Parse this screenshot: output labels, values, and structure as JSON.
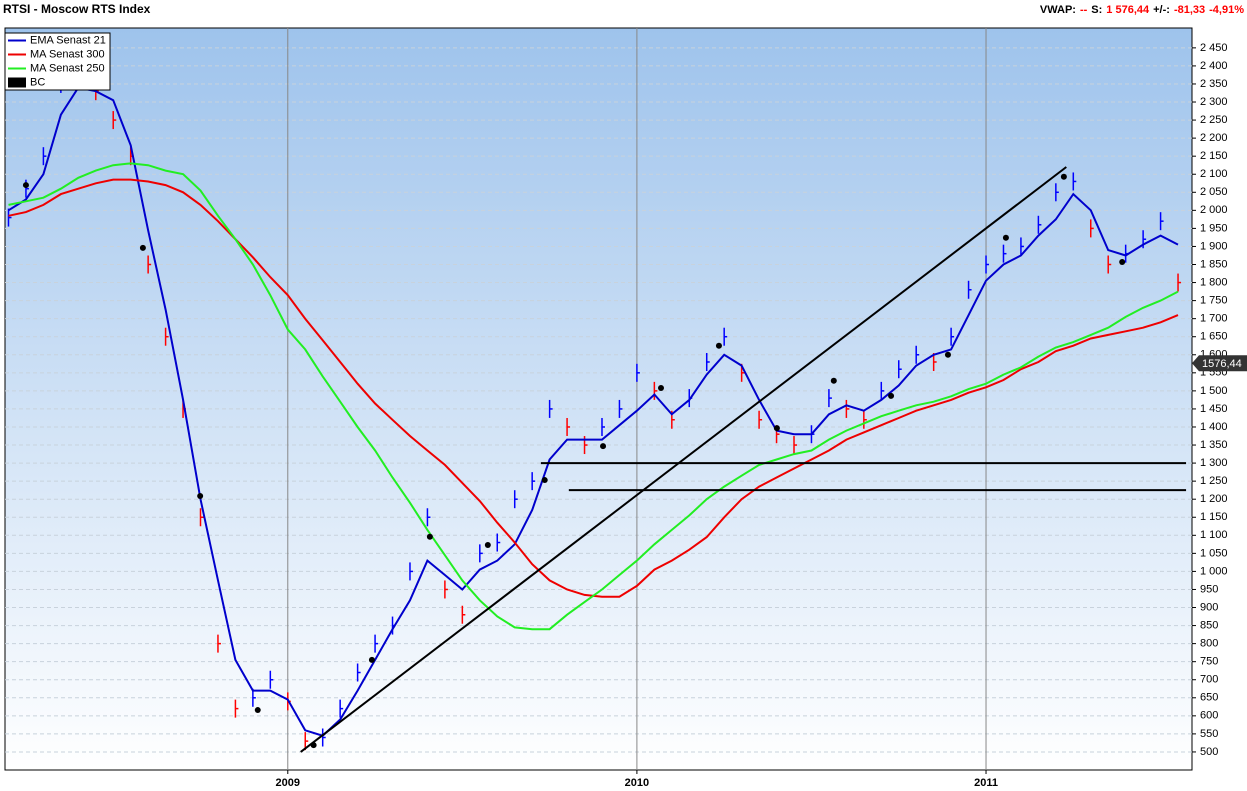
{
  "chart_data": {
    "type": "line",
    "title": "RTSI - Moscow RTS Index",
    "header_right": [
      {
        "text": "VWAP:",
        "color": "#000000"
      },
      {
        "text": "--",
        "color": "#ff0000"
      },
      {
        "text": "S:",
        "color": "#000000"
      },
      {
        "text": "1 576,44",
        "color": "#ff0000"
      },
      {
        "text": "+/-:",
        "color": "#000000"
      },
      {
        "text": "-81,33",
        "color": "#ff0000"
      },
      {
        "text": "-4,91%",
        "color": "#ff0000"
      }
    ],
    "x": [
      2008.2,
      2008.25,
      2008.3,
      2008.35,
      2008.4,
      2008.45,
      2008.5,
      2008.55,
      2008.6,
      2008.65,
      2008.7,
      2008.75,
      2008.8,
      2008.85,
      2008.9,
      2008.95,
      2009.0,
      2009.05,
      2009.1,
      2009.15,
      2009.2,
      2009.25,
      2009.3,
      2009.35,
      2009.4,
      2009.45,
      2009.5,
      2009.55,
      2009.6,
      2009.65,
      2009.7,
      2009.75,
      2009.8,
      2009.85,
      2009.9,
      2009.95,
      2010.0,
      2010.05,
      2010.1,
      2010.15,
      2010.2,
      2010.25,
      2010.3,
      2010.35,
      2010.4,
      2010.45,
      2010.5,
      2010.55,
      2010.6,
      2010.65,
      2010.7,
      2010.75,
      2010.8,
      2010.85,
      2010.9,
      2010.95,
      2011.0,
      2011.05,
      2011.1,
      2011.15,
      2011.2,
      2011.25,
      2011.3,
      2011.35,
      2011.4,
      2011.45,
      2011.5,
      2011.55
    ],
    "series": [
      {
        "name": "EMA  Senast 21",
        "color": "#0000cc",
        "style": "line",
        "values": [
          2000,
          2030,
          2100,
          2265,
          2340,
          2330,
          2305,
          2180,
          1945,
          1725,
          1475,
          1200,
          975,
          755,
          670,
          670,
          645,
          560,
          545,
          590,
          670,
          755,
          840,
          920,
          1030,
          990,
          950,
          1005,
          1030,
          1075,
          1170,
          1310,
          1365,
          1365,
          1365,
          1405,
          1445,
          1490,
          1435,
          1475,
          1545,
          1600,
          1570,
          1475,
          1390,
          1380,
          1380,
          1435,
          1460,
          1445,
          1475,
          1515,
          1570,
          1600,
          1615,
          1710,
          1805,
          1850,
          1875,
          1930,
          1975,
          2045,
          2000,
          1890,
          1875,
          1905,
          1930,
          1905
        ]
      },
      {
        "name": "MA  Senast 300",
        "color": "#ee0000",
        "style": "line",
        "values": [
          1985,
          1995,
          2015,
          2045,
          2060,
          2075,
          2085,
          2085,
          2080,
          2070,
          2050,
          2015,
          1970,
          1920,
          1870,
          1815,
          1765,
          1700,
          1640,
          1580,
          1520,
          1465,
          1420,
          1375,
          1335,
          1295,
          1245,
          1195,
          1135,
          1080,
          1020,
          975,
          950,
          935,
          930,
          930,
          960,
          1005,
          1030,
          1060,
          1095,
          1150,
          1200,
          1235,
          1260,
          1285,
          1310,
          1335,
          1365,
          1385,
          1405,
          1425,
          1445,
          1460,
          1475,
          1495,
          1510,
          1530,
          1560,
          1580,
          1610,
          1625,
          1645,
          1655,
          1665,
          1675,
          1690,
          1710
        ]
      },
      {
        "name": "MA  Senast 250",
        "color": "#22ee22",
        "style": "line",
        "values": [
          2015,
          2025,
          2035,
          2060,
          2090,
          2110,
          2125,
          2130,
          2125,
          2110,
          2100,
          2055,
          1985,
          1920,
          1850,
          1765,
          1670,
          1615,
          1540,
          1470,
          1400,
          1335,
          1260,
          1190,
          1115,
          1045,
          975,
          920,
          875,
          845,
          840,
          840,
          880,
          915,
          950,
          990,
          1030,
          1075,
          1115,
          1155,
          1200,
          1235,
          1265,
          1295,
          1310,
          1325,
          1335,
          1365,
          1390,
          1410,
          1430,
          1445,
          1460,
          1470,
          1485,
          1505,
          1520,
          1545,
          1565,
          1595,
          1620,
          1635,
          1655,
          1675,
          1705,
          1730,
          1750,
          1775
        ]
      },
      {
        "name": "BC",
        "color": "#000000",
        "style": "bars",
        "up_color": "#0000ff",
        "down_color": "#ff0000",
        "values": [
          1980,
          2060,
          2150,
          2350,
          2400,
          2330,
          2250,
          2150,
          1850,
          1650,
          1450,
          1150,
          800,
          620,
          650,
          700,
          640,
          530,
          540,
          620,
          720,
          800,
          850,
          1000,
          1150,
          950,
          880,
          1050,
          1080,
          1200,
          1250,
          1450,
          1400,
          1350,
          1400,
          1450,
          1550,
          1500,
          1420,
          1480,
          1580,
          1650,
          1550,
          1420,
          1380,
          1350,
          1380,
          1480,
          1450,
          1420,
          1500,
          1560,
          1600,
          1580,
          1650,
          1780,
          1850,
          1880,
          1900,
          1960,
          2050,
          2080,
          1950,
          1850,
          1880,
          1920,
          1970,
          1800
        ]
      }
    ],
    "markers": {
      "color": "#000000",
      "x": [
        2008.25,
        2008.585,
        2008.749,
        2008.914,
        2009.074,
        2009.241,
        2009.407,
        2009.573,
        2009.736,
        2009.903,
        2010.069,
        2010.235,
        2010.401,
        2010.564,
        2010.728,
        2010.891,
        2011.057,
        2011.223,
        2011.39
      ],
      "y": [
        2070,
        1896,
        1209,
        616,
        519,
        755,
        1096,
        1073,
        1253,
        1347,
        1508,
        1625,
        1397,
        1528,
        1486,
        1600,
        1924,
        2093,
        1857
      ]
    },
    "trend_lines": [
      {
        "color": "#000000",
        "x": [
          2009.037,
          2011.23
        ],
        "y": [
          500,
          2120
        ]
      },
      {
        "color": "#000000",
        "x": [
          2009.725,
          2011.573
        ],
        "y": [
          1300,
          1300
        ]
      },
      {
        "color": "#000000",
        "x": [
          2009.805,
          2011.573
        ],
        "y": [
          1225,
          1225
        ]
      }
    ],
    "last_value": {
      "value": 1576.44,
      "label": "1576,44"
    },
    "xlim": [
      2008.19,
      2011.59
    ],
    "xticks": [
      2009,
      2010,
      2011
    ],
    "ylim": [
      450,
      2505
    ],
    "yticks": [
      500,
      550,
      600,
      650,
      700,
      750,
      800,
      850,
      900,
      950,
      {
        "value": 1000,
        "label": "1 000"
      },
      {
        "value": 1050,
        "label": "1 050"
      },
      {
        "value": 1100,
        "label": "1 100"
      },
      {
        "value": 1150,
        "label": "1 150"
      },
      {
        "value": 1200,
        "label": "1 200"
      },
      {
        "value": 1250,
        "label": "1 250"
      },
      {
        "value": 1300,
        "label": "1 300"
      },
      {
        "value": 1350,
        "label": "1 350"
      },
      {
        "value": 1400,
        "label": "1 400"
      },
      {
        "value": 1450,
        "label": "1 450"
      },
      {
        "value": 1500,
        "label": "1 500"
      },
      {
        "value": 1550,
        "label": "1 550"
      },
      {
        "value": 1600,
        "label": "1 600"
      },
      {
        "value": 1650,
        "label": "1 650"
      },
      {
        "value": 1700,
        "label": "1 700"
      },
      {
        "value": 1750,
        "label": "1 750"
      },
      {
        "value": 1800,
        "label": "1 800"
      },
      {
        "value": 1850,
        "label": "1 850"
      },
      {
        "value": 1900,
        "label": "1 900"
      },
      {
        "value": 1950,
        "label": "1 950"
      },
      {
        "value": 2000,
        "label": "2 000"
      },
      {
        "value": 2050,
        "label": "2 050"
      },
      {
        "value": 2100,
        "label": "2 100"
      },
      {
        "value": 2150,
        "label": "2 150"
      },
      {
        "value": 2200,
        "label": "2 200"
      },
      {
        "value": 2250,
        "label": "2 250"
      },
      {
        "value": 2300,
        "label": "2 300"
      },
      {
        "value": 2350,
        "label": "2 350"
      },
      {
        "value": 2400,
        "label": "2 400"
      },
      {
        "value": 2450,
        "label": "2 450"
      }
    ],
    "grid": true,
    "legend": "upper left"
  }
}
